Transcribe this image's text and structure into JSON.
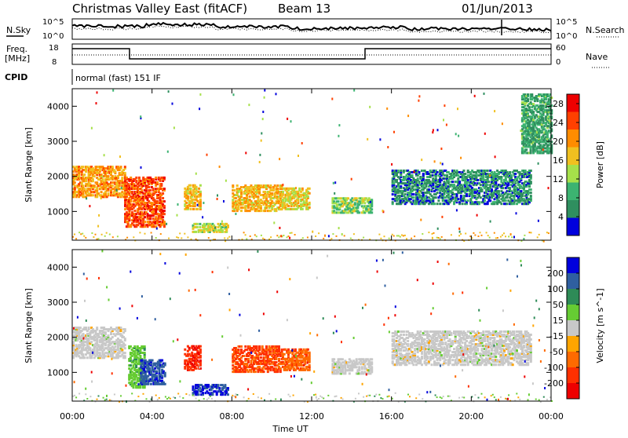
{
  "header": {
    "station": "Christmas Valley East (fitACF)",
    "beam": "Beam 13",
    "date": "01/Jun/2013"
  },
  "noise_panel": {
    "left_label": "N.Sky",
    "right_label": "N.Search",
    "ticks": [
      "10^5",
      "10^0"
    ]
  },
  "freq_panel": {
    "left_label_1": "Freq.",
    "left_label_2": "[MHz]",
    "left_ticks": [
      "18",
      "8"
    ],
    "right_label": "Nave",
    "right_ticks": [
      "60",
      "0"
    ]
  },
  "cpid": {
    "label": "CPID",
    "value": "normal (fast) 151 IF"
  },
  "colors": {
    "power_scale": [
      "#0000dd",
      "#2f8f5f",
      "#3cb371",
      "#a6e04a",
      "#f0c020",
      "#ff8c00",
      "#ff4000",
      "#ee0000"
    ],
    "velocity_scale": [
      "#0000dd",
      "#2f5fa0",
      "#2e8b57",
      "#66cc33",
      "#c8c8c8",
      "#ffa500",
      "#ff6a00",
      "#ff3000",
      "#ee0000"
    ]
  },
  "chart_data": [
    {
      "type": "heatmap",
      "title": "Power",
      "xlabel": "",
      "ylabel": "Slant Range [km]",
      "xlim": [
        "00:00",
        "24:00"
      ],
      "ylim": [
        180,
        4500
      ],
      "y_ticks": [
        "1000",
        "2000",
        "3000",
        "4000"
      ],
      "colorbar_label": "Power [dB]",
      "colorbar_ticks": [
        "4",
        "8",
        "12",
        "16",
        "20",
        "24",
        "28"
      ],
      "colorbar_range": [
        0,
        30
      ],
      "features": [
        {
          "t_start": 0.0,
          "t_end": 2.6,
          "range_low": 1450,
          "range_high": 2350,
          "value": 20
        },
        {
          "t_start": 2.6,
          "t_end": 4.6,
          "range_low": 600,
          "range_high": 2000,
          "value": 24
        },
        {
          "t_start": 5.6,
          "t_end": 6.4,
          "range_low": 1100,
          "range_high": 1800,
          "value": 18
        },
        {
          "t_start": 6.0,
          "t_end": 7.8,
          "range_low": 450,
          "range_high": 700,
          "value": 14
        },
        {
          "t_start": 8.0,
          "t_end": 10.5,
          "range_low": 1050,
          "range_high": 1800,
          "value": 18
        },
        {
          "t_start": 10.5,
          "t_end": 11.9,
          "range_low": 1100,
          "range_high": 1700,
          "value": 16
        },
        {
          "t_start": 13.0,
          "t_end": 15.0,
          "range_low": 1000,
          "range_high": 1450,
          "value": 12
        },
        {
          "t_start": 16.0,
          "t_end": 23.0,
          "range_low": 1250,
          "range_high": 2200,
          "value": 6
        },
        {
          "t_start": 22.5,
          "t_end": 24.0,
          "range_low": 2700,
          "range_high": 4400,
          "value": 8
        }
      ]
    },
    {
      "type": "heatmap",
      "title": "Velocity",
      "xlabel": "Time UT",
      "ylabel": "Slant Range [km]",
      "xlim": [
        "00:00",
        "24:00"
      ],
      "ylim": [
        180,
        4500
      ],
      "x_ticks": [
        "00:00",
        "04:00",
        "08:00",
        "12:00",
        "16:00",
        "20:00",
        "00:00"
      ],
      "y_ticks": [
        "1000",
        "2000",
        "3000",
        "4000"
      ],
      "colorbar_label": "Velocity [m s^-1]",
      "colorbar_ticks": [
        "200",
        "100",
        "50",
        "15",
        "-15",
        "-50",
        "-100",
        "-200"
      ],
      "colorbar_range": [
        -250,
        250
      ],
      "features": [
        {
          "t_start": 0.0,
          "t_end": 2.6,
          "range_low": 1450,
          "range_high": 2350,
          "value": 0
        },
        {
          "t_start": 2.8,
          "t_end": 3.6,
          "range_low": 600,
          "range_high": 1800,
          "value": 60
        },
        {
          "t_start": 3.4,
          "t_end": 4.6,
          "range_low": 700,
          "range_high": 1400,
          "value": 180
        },
        {
          "t_start": 5.6,
          "t_end": 6.4,
          "range_low": 1100,
          "range_high": 1800,
          "value": -180
        },
        {
          "t_start": 6.0,
          "t_end": 7.8,
          "range_low": 400,
          "range_high": 700,
          "value": 200
        },
        {
          "t_start": 8.0,
          "t_end": 10.5,
          "range_low": 1050,
          "range_high": 1800,
          "value": -150
        },
        {
          "t_start": 10.5,
          "t_end": 11.9,
          "range_low": 1100,
          "range_high": 1700,
          "value": -120
        },
        {
          "t_start": 13.0,
          "t_end": 15.0,
          "range_low": 1000,
          "range_high": 1450,
          "value": 0
        },
        {
          "t_start": 16.0,
          "t_end": 23.0,
          "range_low": 1250,
          "range_high": 2200,
          "value": 0
        }
      ]
    }
  ]
}
